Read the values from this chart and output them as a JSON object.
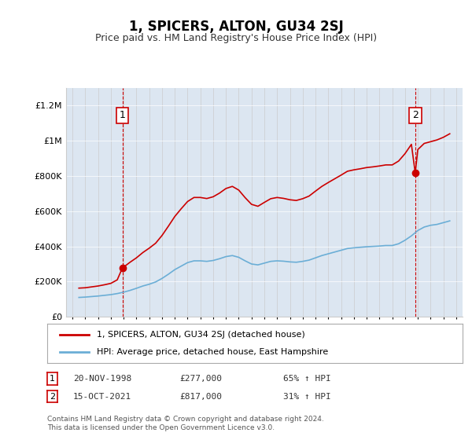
{
  "title": "1, SPICERS, ALTON, GU34 2SJ",
  "subtitle": "Price paid vs. HM Land Registry's House Price Index (HPI)",
  "background_color": "#dce6f1",
  "plot_background": "#dce6f1",
  "ylim": [
    0,
    1300000
  ],
  "yticks": [
    0,
    200000,
    400000,
    600000,
    800000,
    1000000,
    1200000
  ],
  "ytick_labels": [
    "£0",
    "£200K",
    "£400K",
    "£600K",
    "£800K",
    "£1M",
    "£1.2M"
  ],
  "legend_line1": "1, SPICERS, ALTON, GU34 2SJ (detached house)",
  "legend_line2": "HPI: Average price, detached house, East Hampshire",
  "footnote": "Contains HM Land Registry data © Crown copyright and database right 2024.\nThis data is licensed under the Open Government Licence v3.0.",
  "sale1_label": "1",
  "sale1_date": "20-NOV-1998",
  "sale1_price": "£277,000",
  "sale1_hpi": "65% ↑ HPI",
  "sale1_x": 1998.9,
  "sale1_y": 277000,
  "sale2_label": "2",
  "sale2_date": "15-OCT-2021",
  "sale2_price": "£817,000",
  "sale2_hpi": "31% ↑ HPI",
  "sale2_x": 2021.8,
  "sale2_y": 817000,
  "hpi_color": "#6baed6",
  "price_color": "#cc0000",
  "vline_color": "#cc0000",
  "hpi_data": {
    "years": [
      1995.5,
      1996.0,
      1996.5,
      1997.0,
      1997.5,
      1998.0,
      1998.5,
      1999.0,
      1999.5,
      2000.0,
      2000.5,
      2001.0,
      2001.5,
      2002.0,
      2002.5,
      2003.0,
      2003.5,
      2004.0,
      2004.5,
      2005.0,
      2005.5,
      2006.0,
      2006.5,
      2007.0,
      2007.5,
      2008.0,
      2008.5,
      2009.0,
      2009.5,
      2010.0,
      2010.5,
      2011.0,
      2011.5,
      2012.0,
      2012.5,
      2013.0,
      2013.5,
      2014.0,
      2014.5,
      2015.0,
      2015.5,
      2016.0,
      2016.5,
      2017.0,
      2017.5,
      2018.0,
      2018.5,
      2019.0,
      2019.5,
      2020.0,
      2020.5,
      2021.0,
      2021.5,
      2022.0,
      2022.5,
      2023.0,
      2023.5,
      2024.0,
      2024.5
    ],
    "values": [
      110000,
      112000,
      115000,
      118000,
      122000,
      126000,
      132000,
      140000,
      150000,
      162000,
      175000,
      185000,
      198000,
      218000,
      242000,
      268000,
      288000,
      308000,
      318000,
      318000,
      315000,
      320000,
      330000,
      342000,
      348000,
      338000,
      318000,
      300000,
      295000,
      305000,
      315000,
      318000,
      316000,
      312000,
      310000,
      315000,
      322000,
      335000,
      348000,
      358000,
      368000,
      378000,
      388000,
      392000,
      395000,
      398000,
      400000,
      402000,
      405000,
      405000,
      415000,
      435000,
      460000,
      490000,
      510000,
      520000,
      525000,
      535000,
      545000
    ]
  },
  "price_data": {
    "years": [
      1995.5,
      1996.0,
      1996.5,
      1997.0,
      1997.5,
      1998.0,
      1998.5,
      1998.9,
      1999.5,
      2000.0,
      2000.5,
      2001.0,
      2001.5,
      2002.0,
      2002.5,
      2003.0,
      2003.5,
      2004.0,
      2004.5,
      2005.0,
      2005.5,
      2006.0,
      2006.5,
      2007.0,
      2007.5,
      2008.0,
      2008.5,
      2009.0,
      2009.5,
      2010.0,
      2010.5,
      2011.0,
      2011.5,
      2012.0,
      2012.5,
      2013.0,
      2013.5,
      2014.0,
      2014.5,
      2015.0,
      2015.5,
      2016.0,
      2016.5,
      2017.0,
      2017.5,
      2018.0,
      2018.5,
      2019.0,
      2019.5,
      2020.0,
      2020.5,
      2021.0,
      2021.5,
      2021.8,
      2022.0,
      2022.5,
      2023.0,
      2023.5,
      2024.0,
      2024.5
    ],
    "values": [
      163000,
      165000,
      170000,
      175000,
      182000,
      190000,
      210000,
      277000,
      310000,
      335000,
      365000,
      390000,
      418000,
      462000,
      515000,
      570000,
      614000,
      655000,
      678000,
      678000,
      672000,
      682000,
      703000,
      729000,
      741000,
      720000,
      677000,
      639000,
      628000,
      650000,
      671000,
      678000,
      673000,
      665000,
      661000,
      671000,
      686000,
      714000,
      741000,
      763000,
      784000,
      805000,
      827000,
      835000,
      841000,
      848000,
      852000,
      857000,
      863000,
      863000,
      885000,
      927000,
      980000,
      817000,
      950000,
      985000,
      995000,
      1005000,
      1020000,
      1040000
    ]
  },
  "xmin": 1994.5,
  "xmax": 2025.5,
  "xtick_years": [
    1995,
    1996,
    1997,
    1998,
    1999,
    2000,
    2001,
    2002,
    2003,
    2004,
    2005,
    2006,
    2007,
    2008,
    2009,
    2010,
    2011,
    2012,
    2013,
    2014,
    2015,
    2016,
    2017,
    2018,
    2019,
    2020,
    2021,
    2022,
    2023,
    2024,
    2025
  ]
}
